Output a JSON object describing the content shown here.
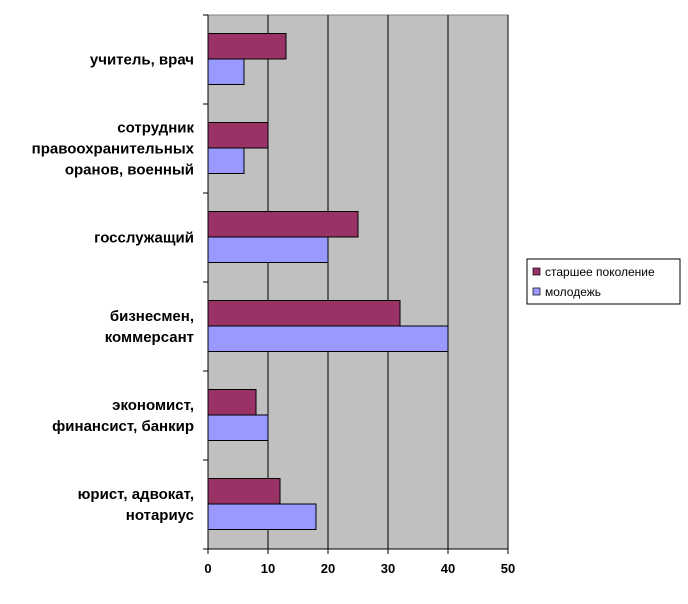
{
  "chart_data": {
    "type": "bar",
    "orientation": "horizontal",
    "categories": [
      "учитель, врач",
      "сотрудник правоохранительных оранов, военный",
      "госслужащий",
      "бизнесмен, коммерсант",
      "экономист, финансист, банкир",
      "юрист, адвокат, нотариус"
    ],
    "category_lines": [
      [
        "учитель, врач"
      ],
      [
        "сотрудник",
        "правоохранительных",
        "оранов, военный"
      ],
      [
        "госслужащий"
      ],
      [
        "бизнесмен,",
        "коммерсант"
      ],
      [
        "экономист,",
        "финансист, банкир"
      ],
      [
        "юрист, адвокат,",
        "нотариус"
      ]
    ],
    "series": [
      {
        "name": "старшее поколение",
        "color": "#993366",
        "values": [
          13,
          10,
          25,
          32,
          8,
          12
        ]
      },
      {
        "name": "молодежь",
        "color": "#9999ff",
        "values": [
          6,
          6,
          20,
          40,
          10,
          18
        ]
      }
    ],
    "xlim": [
      0,
      50
    ],
    "xticks": [
      0,
      10,
      20,
      30,
      40,
      50
    ],
    "grid": true,
    "plot_background": "#c0c0c0",
    "legend_position": "right",
    "title": "",
    "xlabel": "",
    "ylabel": ""
  }
}
